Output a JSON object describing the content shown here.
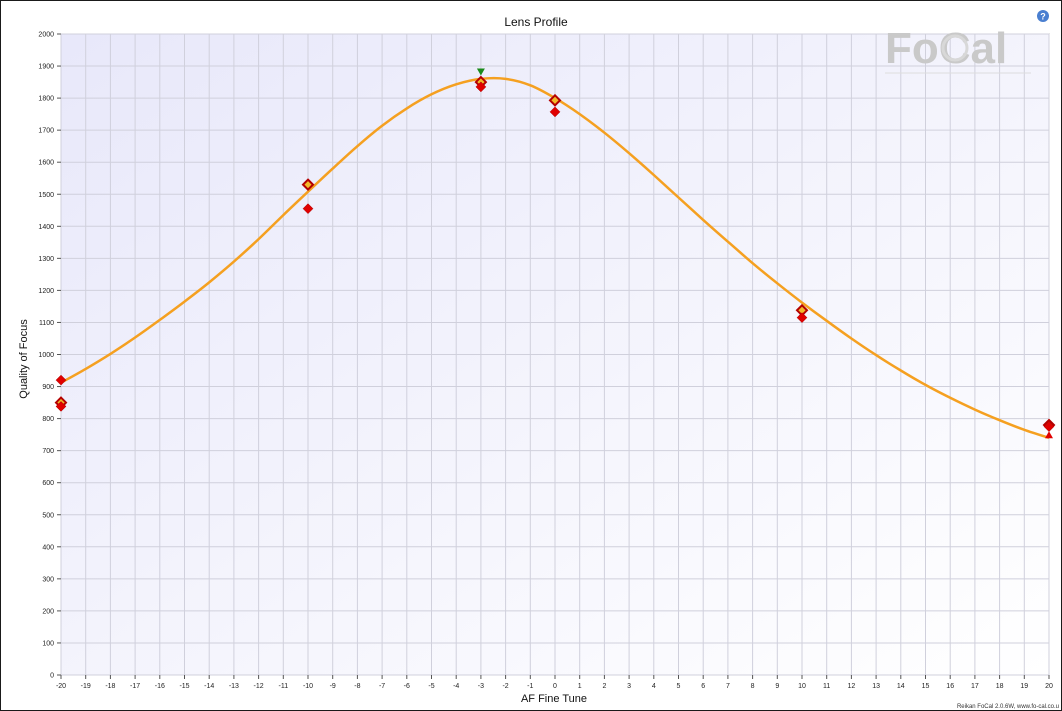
{
  "chart_data": {
    "type": "scatter",
    "title": "Lens Profile",
    "xlabel": "AF Fine Tune",
    "ylabel": "Quality of Focus",
    "xlim": [
      -20,
      20
    ],
    "ylim": [
      0,
      2000
    ],
    "x_ticks": [
      -20,
      -19,
      -18,
      -17,
      -16,
      -15,
      -14,
      -13,
      -12,
      -11,
      -10,
      -9,
      -8,
      -7,
      -6,
      -5,
      -4,
      -3,
      -2,
      -1,
      0,
      1,
      2,
      3,
      4,
      5,
      6,
      7,
      8,
      9,
      10,
      11,
      12,
      13,
      14,
      15,
      16,
      17,
      18,
      19,
      20
    ],
    "y_ticks": [
      0,
      100,
      200,
      300,
      400,
      500,
      600,
      700,
      800,
      900,
      1000,
      1100,
      1200,
      1300,
      1400,
      1500,
      1600,
      1700,
      1800,
      1900,
      2000
    ],
    "grid": true,
    "series": [
      {
        "marker": "diamond-outlined",
        "color": "#cc0000",
        "points": [
          [
            -20,
            850
          ],
          [
            -10,
            1530
          ],
          [
            -3,
            1850
          ],
          [
            0,
            1793
          ],
          [
            10,
            1138
          ],
          [
            20,
            780
          ]
        ]
      },
      {
        "marker": "diamond",
        "color": "#e00000",
        "points": [
          [
            -20,
            920
          ],
          [
            -20,
            838
          ],
          [
            -10,
            1455
          ],
          [
            -3,
            1835
          ],
          [
            0,
            1757
          ],
          [
            10,
            1115
          ],
          [
            20,
            775
          ]
        ]
      },
      {
        "marker": "triangle-down",
        "color": "#1a8a1a",
        "points": [
          [
            -3,
            1880
          ]
        ]
      },
      {
        "marker": "triangle-up",
        "color": "#e00000",
        "points": [
          [
            20,
            748
          ]
        ]
      },
      {
        "line": true,
        "color": "#f5a020",
        "points": [
          [
            -20,
            912
          ],
          [
            -19,
            955
          ],
          [
            -18,
            1002
          ],
          [
            -17,
            1053
          ],
          [
            -16,
            1108
          ],
          [
            -15,
            1165
          ],
          [
            -14,
            1225
          ],
          [
            -13,
            1290
          ],
          [
            -12,
            1360
          ],
          [
            -11,
            1435
          ],
          [
            -10,
            1508
          ],
          [
            -9,
            1580
          ],
          [
            -8,
            1650
          ],
          [
            -7,
            1714
          ],
          [
            -6,
            1768
          ],
          [
            -5,
            1812
          ],
          [
            -4,
            1843
          ],
          [
            -3,
            1860
          ],
          [
            -2,
            1860
          ],
          [
            -1,
            1840
          ],
          [
            0,
            1800
          ],
          [
            1,
            1750
          ],
          [
            2,
            1692
          ],
          [
            3,
            1628
          ],
          [
            4,
            1560
          ],
          [
            5,
            1490
          ],
          [
            6,
            1420
          ],
          [
            7,
            1352
          ],
          [
            8,
            1285
          ],
          [
            9,
            1222
          ],
          [
            10,
            1162
          ],
          [
            11,
            1105
          ],
          [
            12,
            1050
          ],
          [
            13,
            998
          ],
          [
            14,
            950
          ],
          [
            15,
            905
          ],
          [
            16,
            865
          ],
          [
            17,
            828
          ],
          [
            18,
            795
          ],
          [
            19,
            765
          ],
          [
            20,
            740
          ]
        ]
      }
    ]
  },
  "logo": {
    "text": "FoCal"
  },
  "help": {
    "icon": "help-circle-icon",
    "glyph": "?",
    "color": "#4a7fd0"
  },
  "footer": {
    "text": "Reikan FoCal 2.0.6W, www.fo-cal.co.u"
  }
}
